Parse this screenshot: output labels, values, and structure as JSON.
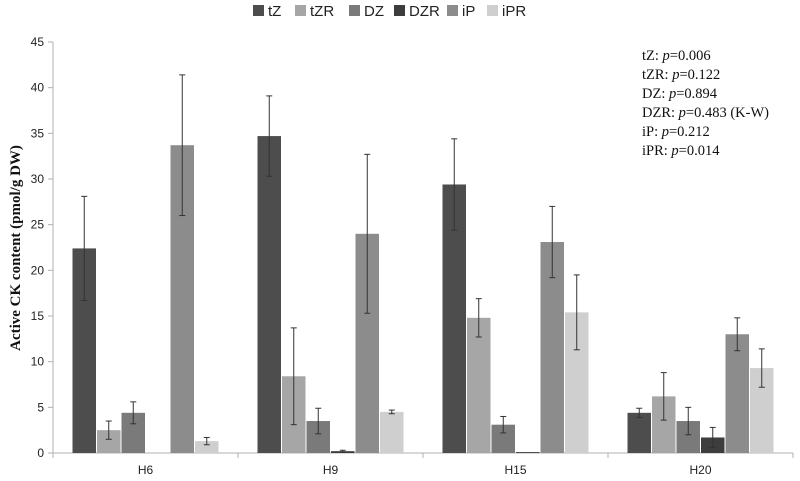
{
  "chart_data": {
    "type": "bar",
    "categories": [
      "H6",
      "H9",
      "H15",
      "H20"
    ],
    "ylabel": "Active CK content (pmol/g DW)",
    "ylim": [
      0,
      45
    ],
    "yticks": [
      0,
      5,
      10,
      15,
      20,
      25,
      30,
      35,
      40,
      45
    ],
    "grid": false,
    "legend_position": "top",
    "series": [
      {
        "name": "tZ",
        "color": "#4d4d4d",
        "values": [
          22.4,
          34.7,
          29.4,
          4.4
        ],
        "err": [
          5.7,
          4.4,
          5.0,
          0.5
        ]
      },
      {
        "name": "tZR",
        "color": "#a6a6a6",
        "values": [
          2.5,
          8.4,
          14.8,
          6.2
        ],
        "err": [
          1.0,
          5.3,
          2.1,
          2.6
        ]
      },
      {
        "name": "DZ",
        "color": "#7a7a7a",
        "values": [
          4.4,
          3.5,
          3.1,
          3.5
        ],
        "err": [
          1.2,
          1.4,
          0.9,
          1.5
        ]
      },
      {
        "name": "DZR",
        "color": "#3d3d3d",
        "values": [
          0,
          0.2,
          0.1,
          1.7
        ],
        "err": [
          0,
          0.1,
          0,
          1.1
        ]
      },
      {
        "name": "iP",
        "color": "#8c8c8c",
        "values": [
          33.7,
          24.0,
          23.1,
          13.0
        ],
        "err": [
          7.7,
          8.7,
          3.9,
          1.8
        ]
      },
      {
        "name": "iPR",
        "color": "#cfcfcf",
        "values": [
          1.3,
          4.5,
          15.4,
          9.3
        ],
        "err": [
          0.4,
          0.2,
          4.1,
          2.1
        ]
      }
    ],
    "annotations": [
      {
        "label": "tZ: ",
        "italic": "p",
        "value": "=0.006"
      },
      {
        "label": "tZR: ",
        "italic": "p",
        "value": "=0.122"
      },
      {
        "label": "DZ: ",
        "italic": "p",
        "value": "=0.894"
      },
      {
        "label": "DZR: ",
        "italic": "p",
        "value": "=0.483 (K-W)"
      },
      {
        "label": "iP: ",
        "italic": "p",
        "value": "=0.212"
      },
      {
        "label": "iPR: ",
        "italic": "p",
        "value": "=0.014"
      }
    ]
  }
}
